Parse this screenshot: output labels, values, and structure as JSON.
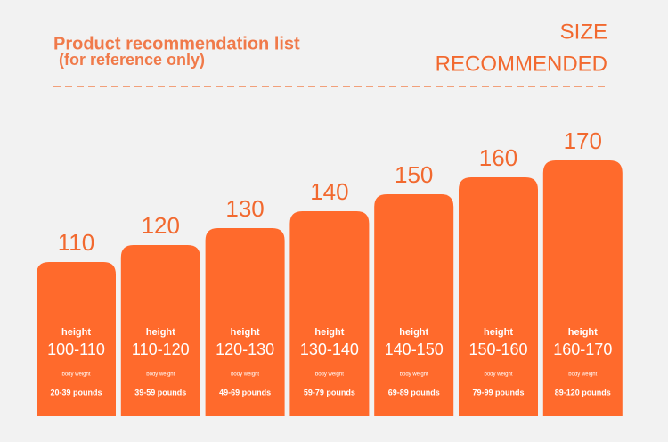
{
  "header": {
    "title": "Product recommendation list",
    "subtitle": "(for reference only)",
    "badge": [
      "SIZE",
      "RECOMMENDED"
    ]
  },
  "columns": [
    {
      "size": "110",
      "height_label": "height",
      "height_range": "100-110",
      "weight_label": "body weight",
      "weight_range": "20-39 pounds"
    },
    {
      "size": "120",
      "height_label": "height",
      "height_range": "110-120",
      "weight_label": "body weight",
      "weight_range": "39-59 pounds"
    },
    {
      "size": "130",
      "height_label": "height",
      "height_range": "120-130",
      "weight_label": "body weight",
      "weight_range": "49-69 pounds"
    },
    {
      "size": "140",
      "height_label": "height",
      "height_range": "130-140",
      "weight_label": "body weight",
      "weight_range": "59-79 pounds"
    },
    {
      "size": "150",
      "height_label": "height",
      "height_range": "140-150",
      "weight_label": "body weight",
      "weight_range": "69-89 pounds"
    },
    {
      "size": "160",
      "height_label": "height",
      "height_range": "150-160",
      "weight_label": "body weight",
      "weight_range": "79-99 pounds"
    },
    {
      "size": "170",
      "height_label": "height",
      "height_range": "160-170",
      "weight_label": "body weight",
      "weight_range": "89-120 pounds"
    }
  ]
}
